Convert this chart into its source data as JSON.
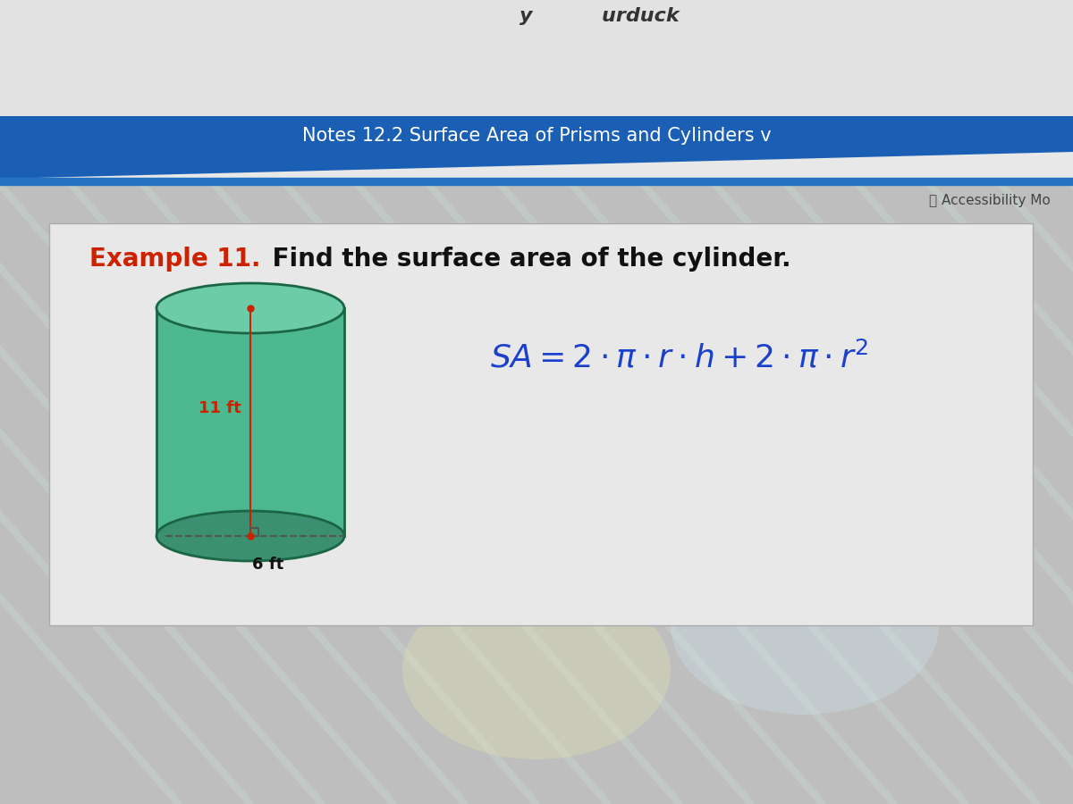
{
  "title_bar_text": "Notes 12.2 Surface Area of Prisms and Cylinders v",
  "title_bar_color": "#1a5fb4",
  "title_bar_text_color": "#ffffff",
  "accessibility_text": "⎘ Accessibility Mo",
  "top_bg_color": "#e8e8e8",
  "below_title_strip_color": "#2574c4",
  "main_bg_color": "#c8c8c8",
  "content_box_color": "#dcdcdc",
  "example_label": "Example 11.",
  "example_label_color": "#cc2200",
  "example_text": " Find the surface area of the cylinder.",
  "example_text_color": "#111111",
  "formula_color": "#1a40cc",
  "height_label": "11 ft",
  "height_label_color": "#cc2200",
  "radius_label": "6 ft",
  "radius_label_color": "#111111",
  "cylinder_body_color": "#4db890",
  "cylinder_edge_color": "#1a6644",
  "cylinder_top_color": "#6dcca8",
  "cylinder_shadow_color": "#3a9070",
  "dot_color": "#cc2200",
  "right_angle_color": "#555555",
  "dashed_line_color": "#555555"
}
